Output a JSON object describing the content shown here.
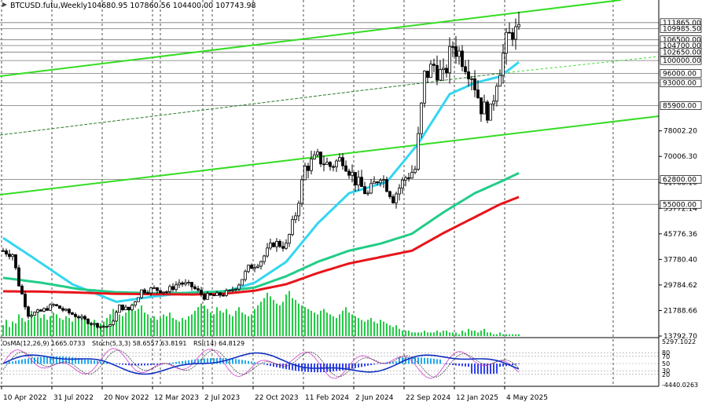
{
  "header": {
    "symbol": "BTCUSD.futu,Weekly",
    "ohlc": "104680.95 107860.56 104400.00 107743.98"
  },
  "indicator_header": {
    "osma": "OsMA(12,26,9) 1665.0733",
    "stoch": "Stoch(5,3,3) 58.6557 63.8191",
    "rsi": "RSI(14) 64.8129"
  },
  "colors": {
    "background": "#ffffff",
    "bull_candle": "#000000",
    "bear_candle": "#000000",
    "ma_fast": "#33d6f2",
    "ma_mid": "#22cc88",
    "ma_slow": "#e8141a",
    "channel": "#33dd22",
    "volume": "#22cc44",
    "osma": "#22aaee",
    "osma_neg": "#3344ee",
    "stoch_main": "#d040d0",
    "stoch_signal": "#303030",
    "rsi": "#1030c0"
  },
  "chart_data": {
    "type": "candlestick",
    "timeframe": "Weekly",
    "ylim": [
      13792.7,
      116000
    ],
    "y_ticks": [
      13792.7,
      21788.66,
      29784.62,
      37780.4,
      45776.36,
      53772.14,
      61768.1,
      70006.3,
      78002.2
    ],
    "x_ticks": [
      "10 Apr 2022",
      "31 Jul 2022",
      "20 Nov 2022",
      "12 Mar 2023",
      "2 Jul 2023",
      "22 Oct 2023",
      "11 Feb 2024",
      "2 Jun 2024",
      "22 Sep 2024",
      "12 Jan 2025",
      "4 May 2025"
    ],
    "price_levels": [
      {
        "label": "111865.00",
        "value": 111865
      },
      {
        "label": "109985.50",
        "value": 109985.5
      },
      {
        "label": "106500.00",
        "value": 106500
      },
      {
        "label": "104700.00",
        "value": 104700
      },
      {
        "label": "102650.00",
        "value": 102650
      },
      {
        "label": "100000.00",
        "value": 100000
      },
      {
        "label": "96000.00",
        "value": 96000
      },
      {
        "label": "93000.00",
        "value": 93000
      },
      {
        "label": "85900.00",
        "value": 85900
      },
      {
        "label": "62800.00",
        "value": 62800
      },
      {
        "label": "55000.00",
        "value": 55000
      }
    ],
    "close_anchors": [
      [
        0,
        40500
      ],
      [
        3,
        39500
      ],
      [
        5,
        30000
      ],
      [
        8,
        20500
      ],
      [
        12,
        21500
      ],
      [
        16,
        23500
      ],
      [
        20,
        21500
      ],
      [
        24,
        19800
      ],
      [
        28,
        17800
      ],
      [
        31,
        16800
      ],
      [
        34,
        16900
      ],
      [
        37,
        23000
      ],
      [
        40,
        22000
      ],
      [
        44,
        28000
      ],
      [
        48,
        28500
      ],
      [
        52,
        27800
      ],
      [
        56,
        30500
      ],
      [
        60,
        29300
      ],
      [
        64,
        26100
      ],
      [
        68,
        26500
      ],
      [
        72,
        27500
      ],
      [
        75,
        30300
      ],
      [
        78,
        35000
      ],
      [
        82,
        37500
      ],
      [
        86,
        43000
      ],
      [
        90,
        42000
      ],
      [
        93,
        52000
      ],
      [
        96,
        66500
      ],
      [
        100,
        69500
      ],
      [
        104,
        67000
      ],
      [
        108,
        69500
      ],
      [
        112,
        62500
      ],
      [
        116,
        58000
      ],
      [
        120,
        64500
      ],
      [
        124,
        57000
      ],
      [
        128,
        63500
      ],
      [
        131,
        66000
      ],
      [
        134,
        95000
      ],
      [
        137,
        98500
      ],
      [
        140,
        94500
      ],
      [
        143,
        105000
      ],
      [
        146,
        101000
      ],
      [
        149,
        96000
      ],
      [
        152,
        85500
      ],
      [
        155,
        83500
      ],
      [
        157,
        94500
      ],
      [
        160,
        105500
      ],
      [
        162,
        109500
      ],
      [
        164,
        107744
      ]
    ],
    "ma_fast": [
      [
        0,
        44500
      ],
      [
        10,
        38000
      ],
      [
        22,
        30000
      ],
      [
        36,
        24500
      ],
      [
        48,
        26200
      ],
      [
        60,
        27500
      ],
      [
        70,
        27500
      ],
      [
        80,
        30500
      ],
      [
        90,
        37000
      ],
      [
        100,
        49000
      ],
      [
        110,
        58500
      ],
      [
        122,
        62000
      ],
      [
        132,
        74000
      ],
      [
        142,
        89500
      ],
      [
        150,
        93000
      ],
      [
        158,
        95000
      ],
      [
        164,
        99500
      ]
    ],
    "ma_mid": [
      [
        0,
        32000
      ],
      [
        12,
        30500
      ],
      [
        24,
        28500
      ],
      [
        36,
        27500
      ],
      [
        48,
        27200
      ],
      [
        60,
        27300
      ],
      [
        70,
        27800
      ],
      [
        80,
        29000
      ],
      [
        90,
        32500
      ],
      [
        100,
        37000
      ],
      [
        110,
        40500
      ],
      [
        120,
        42700
      ],
      [
        130,
        45800
      ],
      [
        140,
        52500
      ],
      [
        150,
        58500
      ],
      [
        158,
        62000
      ],
      [
        164,
        64800
      ]
    ],
    "ma_slow": [
      [
        0,
        27800
      ],
      [
        12,
        27700
      ],
      [
        24,
        27400
      ],
      [
        36,
        27000
      ],
      [
        48,
        26900
      ],
      [
        60,
        26800
      ],
      [
        70,
        27000
      ],
      [
        80,
        28000
      ],
      [
        90,
        30000
      ],
      [
        100,
        33500
      ],
      [
        110,
        36500
      ],
      [
        120,
        38500
      ],
      [
        130,
        40500
      ],
      [
        140,
        46000
      ],
      [
        150,
        51000
      ],
      [
        158,
        55000
      ],
      [
        164,
        57300
      ]
    ],
    "volume": [
      6,
      9,
      5,
      8,
      7,
      12,
      10,
      8,
      9,
      14,
      11,
      13,
      10,
      12,
      9,
      11,
      13,
      12,
      10,
      9,
      11,
      10,
      8,
      12,
      9,
      10,
      11,
      7,
      8,
      9,
      6,
      7,
      8,
      10,
      12,
      15,
      14,
      12,
      11,
      13,
      16,
      18,
      14,
      15,
      17,
      13,
      12,
      10,
      11,
      9,
      10,
      12,
      11,
      13,
      10,
      9,
      8,
      10,
      9,
      11,
      12,
      14,
      16,
      18,
      17,
      15,
      13,
      12,
      16,
      14,
      13,
      15,
      12,
      11,
      14,
      16,
      13,
      12,
      11,
      12,
      15,
      17,
      19,
      21,
      24,
      22,
      20,
      18,
      17,
      19,
      23,
      25,
      21,
      20,
      18,
      17,
      16,
      15,
      14,
      13,
      12,
      14,
      15,
      13,
      12,
      11,
      10,
      12,
      14,
      16,
      13,
      12,
      11,
      10,
      9,
      8,
      9,
      10,
      8,
      7,
      9,
      8,
      7,
      6,
      5,
      6,
      4,
      3,
      3,
      3,
      2,
      2,
      2,
      2,
      3,
      2,
      2,
      2,
      3,
      2,
      3,
      3,
      2,
      2,
      2,
      1,
      3,
      2,
      4,
      3,
      3,
      2,
      3,
      4,
      2,
      2,
      1,
      1,
      2,
      1,
      1,
      1,
      1,
      1,
      1
    ],
    "indicator_panel": {
      "right_labels": [
        "5297.1022",
        "80",
        "70",
        "50",
        "30",
        "20",
        "-4440.0263"
      ],
      "levels": [
        80,
        70,
        50,
        30,
        20
      ]
    }
  }
}
